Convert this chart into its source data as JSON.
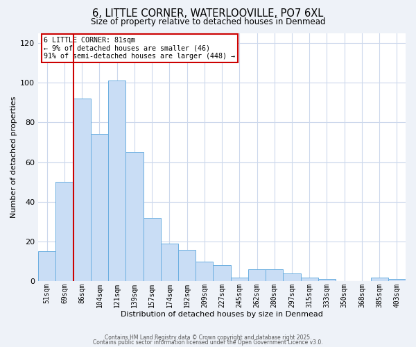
{
  "title": "6, LITTLE CORNER, WATERLOOVILLE, PO7 6XL",
  "subtitle": "Size of property relative to detached houses in Denmead",
  "xlabel": "Distribution of detached houses by size in Denmead",
  "ylabel": "Number of detached properties",
  "bar_color": "#c9ddf5",
  "bar_edge_color": "#6aaee0",
  "categories": [
    "51sqm",
    "69sqm",
    "86sqm",
    "104sqm",
    "121sqm",
    "139sqm",
    "157sqm",
    "174sqm",
    "192sqm",
    "209sqm",
    "227sqm",
    "245sqm",
    "262sqm",
    "280sqm",
    "297sqm",
    "315sqm",
    "333sqm",
    "350sqm",
    "368sqm",
    "385sqm",
    "403sqm"
  ],
  "values": [
    15,
    50,
    92,
    74,
    101,
    65,
    32,
    19,
    16,
    10,
    8,
    2,
    6,
    6,
    4,
    2,
    1,
    0,
    0,
    2,
    1
  ],
  "ylim": [
    0,
    125
  ],
  "yticks": [
    0,
    20,
    40,
    60,
    80,
    100,
    120
  ],
  "vline_color": "#cc0000",
  "annotation_title": "6 LITTLE CORNER: 81sqm",
  "annotation_line1": "← 9% of detached houses are smaller (46)",
  "annotation_line2": "91% of semi-detached houses are larger (448) →",
  "annotation_box_color": "#ffffff",
  "annotation_box_edge": "#cc0000",
  "footer_line1": "Contains HM Land Registry data © Crown copyright and database right 2025.",
  "footer_line2": "Contains public sector information licensed under the Open Government Licence v3.0.",
  "background_color": "#eef2f8",
  "plot_bg_color": "#ffffff",
  "grid_color": "#ccd8ec"
}
